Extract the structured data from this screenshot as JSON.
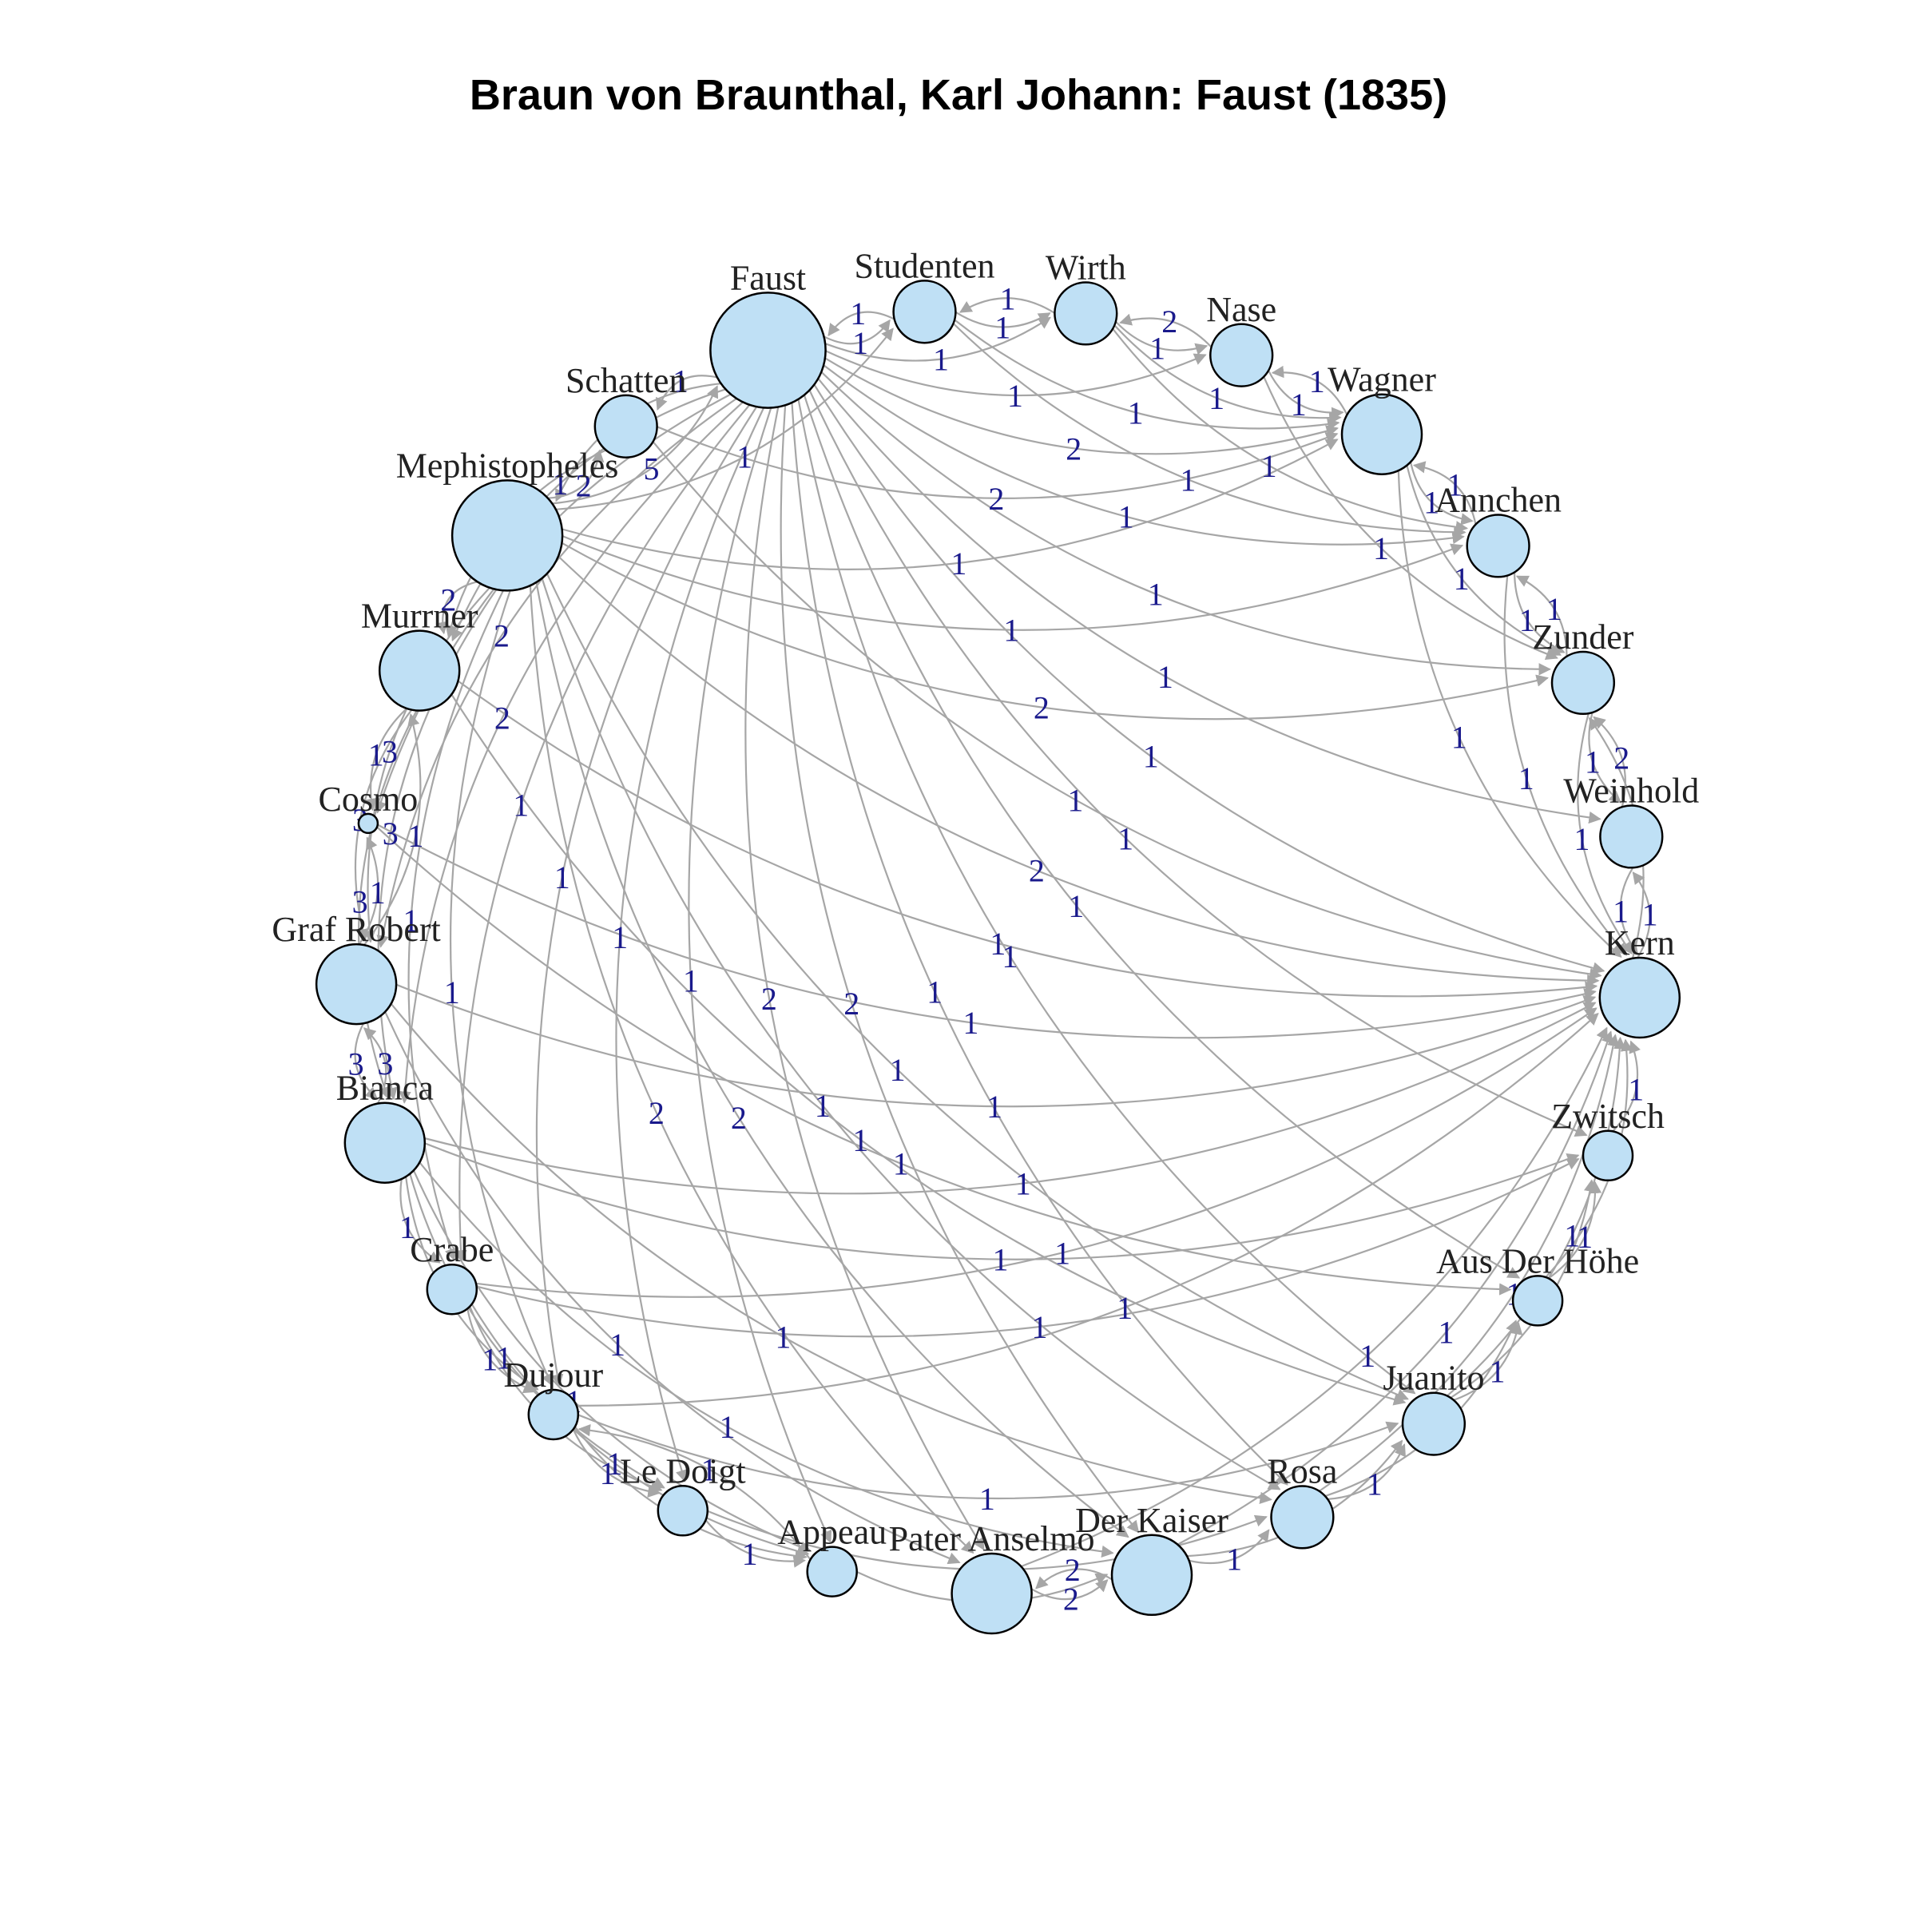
{
  "title": "Braun von Braunthal, Karl Johann: Faust (1835)",
  "colors": {
    "node_fill": "#bfe0f5",
    "node_stroke": "#000000",
    "edge": "#a6a6a6",
    "edge_label": "#1a1a8c",
    "node_label": "#222222"
  },
  "nodes": [
    {
      "id": "Faust",
      "label": "Faust",
      "weight": 10
    },
    {
      "id": "Studenten",
      "label": "Studenten",
      "weight": 2
    },
    {
      "id": "Wirth",
      "label": "Wirth",
      "weight": 2
    },
    {
      "id": "Nase",
      "label": "Nase",
      "weight": 2
    },
    {
      "id": "Wagner",
      "label": "Wagner",
      "weight": 4
    },
    {
      "id": "Annchen",
      "label": "Annchen",
      "weight": 2
    },
    {
      "id": "Zunder",
      "label": "Zunder",
      "weight": 2
    },
    {
      "id": "Weinhold",
      "label": "Weinhold",
      "weight": 2
    },
    {
      "id": "Kern",
      "label": "Kern",
      "weight": 4
    },
    {
      "id": "Zwitsch",
      "label": "Zwitsch",
      "weight": 1
    },
    {
      "id": "AusDerHoehe",
      "label": "Aus Der Höhe",
      "weight": 1
    },
    {
      "id": "Juanito",
      "label": "Juanito",
      "weight": 2
    },
    {
      "id": "Rosa",
      "label": "Rosa",
      "weight": 2
    },
    {
      "id": "DerKaiser",
      "label": "Der Kaiser",
      "weight": 4
    },
    {
      "id": "PaterAnselmo",
      "label": "Pater Anselmo",
      "weight": 4
    },
    {
      "id": "Appeau",
      "label": "Appeau",
      "weight": 1
    },
    {
      "id": "LeDoigt",
      "label": "Le Doigt",
      "weight": 1
    },
    {
      "id": "Dujour",
      "label": "Dujour",
      "weight": 1
    },
    {
      "id": "Crabe",
      "label": "Crabe",
      "weight": 1
    },
    {
      "id": "Bianca",
      "label": "Bianca",
      "weight": 4
    },
    {
      "id": "GrafRobert",
      "label": "Graf Robert",
      "weight": 4
    },
    {
      "id": "Cosmo",
      "label": "Cosmo",
      "weight": 0
    },
    {
      "id": "Murrner",
      "label": "Murrner",
      "weight": 4
    },
    {
      "id": "Mephistopheles",
      "label": "Mephistopheles",
      "weight": 9
    },
    {
      "id": "Schatten",
      "label": "Schatten",
      "weight": 2
    }
  ],
  "edges": [
    [
      "Mephistopheles",
      "Faust",
      5
    ],
    [
      "Faust",
      "Mephistopheles",
      3
    ],
    [
      "Mephistopheles",
      "Schatten",
      2
    ],
    [
      "Faust",
      "Schatten",
      1
    ],
    [
      "Faust",
      "Studenten",
      1
    ],
    [
      "Faust",
      "Wirth",
      1
    ],
    [
      "Faust",
      "Nase",
      1
    ],
    [
      "Faust",
      "Wagner",
      2
    ],
    [
      "Faust",
      "Annchen",
      1
    ],
    [
      "Faust",
      "Zunder",
      1
    ],
    [
      "Faust",
      "Weinhold",
      1
    ],
    [
      "Faust",
      "Kern",
      1
    ],
    [
      "Faust",
      "Zwitsch",
      1
    ],
    [
      "Faust",
      "AusDerHoehe",
      1
    ],
    [
      "Faust",
      "Juanito",
      1
    ],
    [
      "Faust",
      "Rosa",
      1
    ],
    [
      "Faust",
      "DerKaiser",
      2
    ],
    [
      "Faust",
      "PaterAnselmo",
      2
    ],
    [
      "Faust",
      "Appeau",
      1
    ],
    [
      "Faust",
      "LeDoigt",
      1
    ],
    [
      "Faust",
      "Dujour",
      1
    ],
    [
      "Faust",
      "Crabe",
      1
    ],
    [
      "Faust",
      "Bianca",
      2
    ],
    [
      "Faust",
      "GrafRobert",
      2
    ],
    [
      "Faust",
      "Murrner",
      1
    ],
    [
      "Faust",
      "Cosmo",
      1
    ],
    [
      "Mephistopheles",
      "Murrner",
      2
    ],
    [
      "Mephistopheles",
      "GrafRobert",
      3
    ],
    [
      "Mephistopheles",
      "Bianca",
      3
    ],
    [
      "Mephistopheles",
      "Kern",
      2
    ],
    [
      "Mephistopheles",
      "Wagner",
      1
    ],
    [
      "Mephistopheles",
      "PaterAnselmo",
      2
    ],
    [
      "Mephistopheles",
      "DerKaiser",
      2
    ],
    [
      "Mephistopheles",
      "Zunder",
      2
    ],
    [
      "Mephistopheles",
      "Rosa",
      1
    ],
    [
      "Mephistopheles",
      "Juanito",
      1
    ],
    [
      "Mephistopheles",
      "Crabe",
      1
    ],
    [
      "Mephistopheles",
      "Dujour",
      1
    ],
    [
      "Mephistopheles",
      "Studenten",
      1
    ],
    [
      "Mephistopheles",
      "Annchen",
      1
    ],
    [
      "Murrner",
      "GrafRobert",
      3
    ],
    [
      "Murrner",
      "Bianca",
      3
    ],
    [
      "Murrner",
      "Cosmo",
      1
    ],
    [
      "Murrner",
      "Kern",
      1
    ],
    [
      "GrafRobert",
      "Bianca",
      3
    ],
    [
      "GrafRobert",
      "Murrner",
      1
    ],
    [
      "GrafRobert",
      "Cosmo",
      1
    ],
    [
      "GrafRobert",
      "Kern",
      1
    ],
    [
      "GrafRobert",
      "PaterAnselmo",
      1
    ],
    [
      "Bianca",
      "GrafRobert",
      3
    ],
    [
      "Bianca",
      "Crabe",
      1
    ],
    [
      "Bianca",
      "Dujour",
      1
    ],
    [
      "Bianca",
      "LeDoigt",
      1
    ],
    [
      "Bianca",
      "Appeau",
      1
    ],
    [
      "Bianca",
      "Kern",
      1
    ],
    [
      "Bianca",
      "Zwitsch",
      1
    ],
    [
      "Crabe",
      "Dujour",
      1
    ],
    [
      "Crabe",
      "LeDoigt",
      1
    ],
    [
      "Crabe",
      "Appeau",
      1
    ],
    [
      "Dujour",
      "LeDoigt",
      1
    ],
    [
      "Dujour",
      "Appeau",
      1
    ],
    [
      "LeDoigt",
      "Appeau",
      1
    ],
    [
      "Appeau",
      "Dujour",
      1
    ],
    [
      "PaterAnselmo",
      "DerKaiser",
      2
    ],
    [
      "DerKaiser",
      "PaterAnselmo",
      2
    ],
    [
      "DerKaiser",
      "Rosa",
      1
    ],
    [
      "DerKaiser",
      "Juanito",
      1
    ],
    [
      "DerKaiser",
      "Kern",
      1
    ],
    [
      "Rosa",
      "Juanito",
      1
    ],
    [
      "Rosa",
      "AusDerHoehe",
      1
    ],
    [
      "Juanito",
      "AusDerHoehe",
      1
    ],
    [
      "Juanito",
      "Zwitsch",
      1
    ],
    [
      "AusDerHoehe",
      "Zwitsch",
      1
    ],
    [
      "Zwitsch",
      "Kern",
      1
    ],
    [
      "Kern",
      "Weinhold",
      1
    ],
    [
      "Kern",
      "Zunder",
      1
    ],
    [
      "Weinhold",
      "Kern",
      1
    ],
    [
      "Weinhold",
      "Zunder",
      2
    ],
    [
      "Zunder",
      "Weinhold",
      1
    ],
    [
      "Zunder",
      "Annchen",
      1
    ],
    [
      "Annchen",
      "Zunder",
      1
    ],
    [
      "Annchen",
      "Wagner",
      1
    ],
    [
      "Wagner",
      "Annchen",
      1
    ],
    [
      "Wagner",
      "Nase",
      1
    ],
    [
      "Nase",
      "Wagner",
      1
    ],
    [
      "Nase",
      "Wirth",
      2
    ],
    [
      "Wirth",
      "Studenten",
      1
    ],
    [
      "Wirth",
      "Nase",
      1
    ],
    [
      "Studenten",
      "Wirth",
      1
    ],
    [
      "Studenten",
      "Faust",
      1
    ],
    [
      "Wagner",
      "Kern",
      1
    ],
    [
      "Wagner",
      "Zunder",
      1
    ],
    [
      "Nase",
      "Zunder",
      1
    ],
    [
      "Wirth",
      "Wagner",
      1
    ],
    [
      "Studenten",
      "Wagner",
      1
    ],
    [
      "Studenten",
      "Annchen",
      1
    ],
    [
      "Wirth",
      "Annchen",
      1
    ],
    [
      "Schatten",
      "Murrner",
      1
    ],
    [
      "Schatten",
      "Wagner",
      2
    ],
    [
      "Schatten",
      "Kern",
      1
    ],
    [
      "Zunder",
      "Kern",
      1
    ],
    [
      "Annchen",
      "Kern",
      1
    ],
    [
      "Rosa",
      "Kern",
      1
    ],
    [
      "PaterAnselmo",
      "Kern",
      1
    ],
    [
      "AusDerHoehe",
      "Kern",
      1
    ],
    [
      "Juanito",
      "Kern",
      1
    ],
    [
      "Cosmo",
      "Kern",
      1
    ],
    [
      "Crabe",
      "Zwitsch",
      1
    ],
    [
      "Dujour",
      "Juanito",
      1
    ],
    [
      "LeDoigt",
      "Rosa",
      1
    ],
    [
      "Appeau",
      "DerKaiser",
      1
    ],
    [
      "Bianca",
      "DerKaiser",
      1
    ],
    [
      "GrafRobert",
      "Rosa",
      1
    ],
    [
      "Murrner",
      "Juanito",
      1
    ],
    [
      "Cosmo",
      "AusDerHoehe",
      1
    ],
    [
      "Crabe",
      "Kern",
      1
    ],
    [
      "Dujour",
      "Kern",
      1
    ]
  ]
}
